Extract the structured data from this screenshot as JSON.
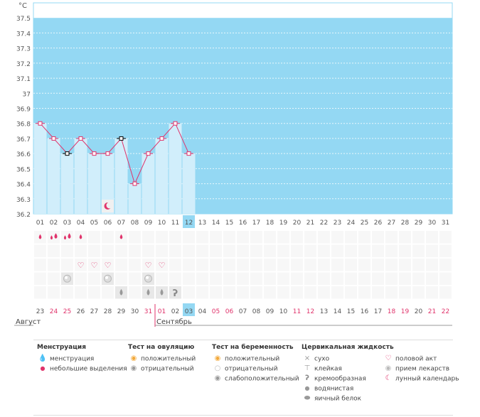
{
  "chart_data": {
    "type": "line",
    "ylabel": "°С",
    "ylim": [
      36.2,
      37.6
    ],
    "yticks": [
      "37.5",
      "37.4",
      "37.3",
      "37.2",
      "37.1",
      "37",
      "36.9",
      "36.8",
      "36.7",
      "36.6",
      "36.5",
      "36.4",
      "36.3",
      "36.2"
    ],
    "x_cycle_days": [
      "01",
      "02",
      "03",
      "04",
      "05",
      "06",
      "07",
      "08",
      "09",
      "10",
      "11",
      "12",
      "13",
      "14",
      "15",
      "16",
      "17",
      "18",
      "19",
      "20",
      "21",
      "22",
      "23",
      "24",
      "25",
      "26",
      "27",
      "28",
      "29",
      "30",
      "31"
    ],
    "current_cycle_day": "12",
    "x_dates": [
      "23",
      "24",
      "25",
      "26",
      "27",
      "28",
      "29",
      "30",
      "31",
      "01",
      "02",
      "03",
      "04",
      "05",
      "06",
      "07",
      "08",
      "09",
      "10",
      "11",
      "12",
      "13",
      "14",
      "15",
      "16",
      "17",
      "18",
      "19",
      "20",
      "21",
      "22"
    ],
    "weekend_date_indices": [
      1,
      2,
      8,
      9,
      13,
      14,
      19,
      20,
      26,
      27,
      29,
      30
    ],
    "current_date_index": 11,
    "month_labels": [
      {
        "label": "Август",
        "start_index": 0
      },
      {
        "label": "Сентябрь",
        "start_index": 9
      }
    ],
    "series": [
      {
        "values": [
          36.8,
          36.7,
          36.6,
          36.7,
          36.6,
          36.6,
          36.7,
          36.4,
          36.6,
          36.7,
          36.8,
          36.6
        ]
      }
    ],
    "black_markers": [
      2,
      6
    ],
    "moon_days": [
      5
    ],
    "menstruation_heavy": [
      1,
      2
    ],
    "menstruation_light": [
      0,
      3,
      6
    ],
    "intercourse_days": [
      3,
      4,
      5,
      8,
      9
    ],
    "pregnancy_test_days": [
      2,
      5,
      8
    ],
    "cervical_watery": [
      6,
      8,
      9
    ],
    "cervical_creamy": [
      10
    ],
    "colors": {
      "plot_bg": "#94d8f3",
      "bar": "#d1eefb",
      "line": "#e0336b",
      "grid": "#ffffff",
      "weekend": "#e0336b",
      "current": "#94d8f3"
    }
  },
  "legend": {
    "menstruation": {
      "title": "Менструация",
      "items": [
        "менструация",
        "небольшие выделения"
      ]
    },
    "ovulation": {
      "title": "Тест на овуляцию",
      "items": [
        "положительный",
        "отрицательный"
      ]
    },
    "pregnancy": {
      "title": "Тест на беременность",
      "items": [
        "положительный",
        "отрицательный",
        "слабоположительный"
      ]
    },
    "cervical": {
      "title": "Цервикальная жидкость",
      "items": [
        "сухо",
        "клейкая",
        "кремообразная",
        "водянистая",
        "яичный белок"
      ]
    },
    "other": {
      "items": [
        "половой акт",
        "прием лекарств",
        "лунный календарь"
      ]
    }
  }
}
